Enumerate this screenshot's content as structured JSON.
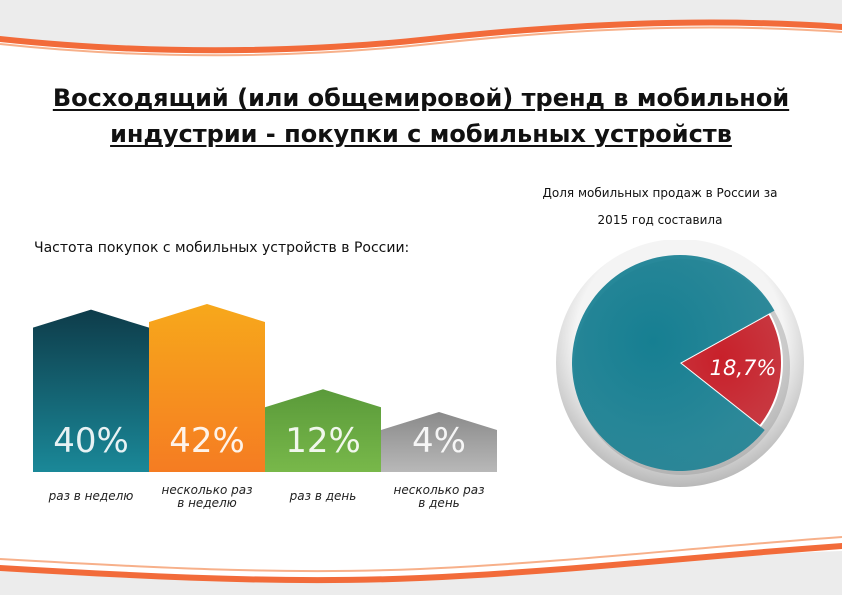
{
  "page": {
    "title_line1": "Восходящий (или общемировой) тренд в мобильной",
    "title_line2": "индустрии - покупки с мобильных устройств"
  },
  "pie_caption": {
    "line1": "Доля мобильных продаж в России за",
    "line2": "2015 год составила"
  },
  "bars_caption": "Частота покупок с мобильных устройств в России:",
  "colors": {
    "accent": "#f26b3a",
    "teal": "#1a7a88",
    "orange": "#f7941d",
    "green": "#6cb33f",
    "gray": "#9e9e9e",
    "red": "#c8202a"
  },
  "chart_data": [
    {
      "type": "bar",
      "title": "Частота покупок с мобильных устройств в России:",
      "unit": "%",
      "categories": [
        [
          "раз в неделю"
        ],
        [
          "несколько раз",
          "в неделю"
        ],
        [
          "раз в день"
        ],
        [
          "несколько раз",
          "в день"
        ]
      ],
      "values": [
        40,
        42,
        12,
        4
      ],
      "value_labels": [
        "40%",
        "42%",
        "12%",
        "4%"
      ],
      "colors": [
        [
          "#0e3c4a",
          "#1a8898"
        ],
        [
          "#f7a81b",
          "#f57c22"
        ],
        [
          "#5a9a3a",
          "#78b84a"
        ],
        [
          "#8a8a8a",
          "#b8b8b8"
        ]
      ]
    },
    {
      "type": "pie",
      "title": "Доля мобильных продаж в России за 2015 год составила",
      "slices": [
        {
          "value": 18.7,
          "label": "18,7%",
          "color": "#c8202a"
        },
        {
          "value": 81.3,
          "label": "",
          "color": "#167f92"
        }
      ]
    }
  ]
}
